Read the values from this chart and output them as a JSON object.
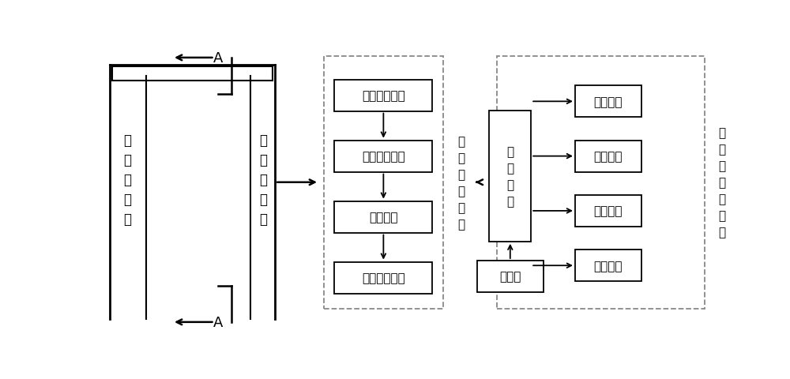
{
  "bg_color": "#ffffff",
  "line_color": "#000000",
  "dashed_color": "#888888",
  "font_size": 11,
  "font_size_small": 10,
  "detector_label1": "探\n测\n器\n系\n统",
  "detector_label2": "探\n测\n器\n系\n统",
  "electronics_label": "电\n子\n电\n路\n系\n统",
  "computer_label": "计\n算\n机\n软\n件\n系\n统",
  "software_label": "检\n测\n软\n件",
  "database_label": "数据库",
  "elec_box_labels": [
    "程控高压模块",
    "信号采集模块",
    "通信模块",
    "信号处理模块"
  ],
  "output_box_labels": [
    "解谱分析",
    "核素识别",
    "核素定位",
    "自动报警"
  ],
  "A_label": "A"
}
